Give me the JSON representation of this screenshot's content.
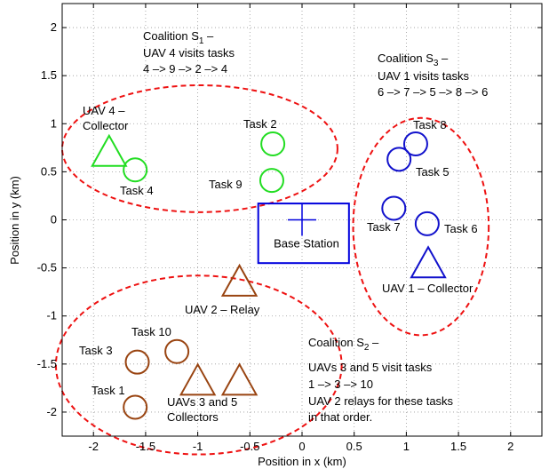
{
  "chart_data": {
    "type": "scatter",
    "xlabel": "Position in x (km)",
    "ylabel": "Position in y (km)",
    "xlim": [
      -2.3,
      2.3
    ],
    "ylim": [
      -2.25,
      2.25
    ],
    "xticks": [
      -2,
      -1.5,
      -1,
      -0.5,
      0,
      0.5,
      1,
      1.5,
      2
    ],
    "xtick_labels": [
      "-2",
      "-1.5",
      "-1",
      "-0.5",
      "0",
      "0.5",
      "1",
      "1.5",
      "2"
    ],
    "yticks": [
      -2,
      -1.5,
      -1,
      -0.5,
      0,
      0.5,
      1,
      1.5,
      2
    ],
    "ytick_labels": [
      "-2",
      "-1.5",
      "-1",
      "-0.5",
      "0",
      "0.5",
      "1",
      "1.5",
      "2"
    ],
    "grid": true,
    "colors": {
      "coalition1": "#22dd22",
      "coalition2": "#994411",
      "coalition3": "#1111cc",
      "base": "#0000dd",
      "ellipse": "#ee1111"
    },
    "tasks": [
      {
        "label": "Task 1",
        "x": -1.6,
        "y": -1.95,
        "color": "coalition2"
      },
      {
        "label": "Task 3",
        "x": -1.58,
        "y": -1.48,
        "color": "coalition2"
      },
      {
        "label": "Task 10",
        "x": -1.2,
        "y": -1.37,
        "color": "coalition2"
      },
      {
        "label": "Task 2",
        "x": -0.28,
        "y": 0.79,
        "color": "coalition1"
      },
      {
        "label": "Task 9",
        "x": -0.29,
        "y": 0.41,
        "color": "coalition1"
      },
      {
        "label": "Task 4",
        "x": -1.6,
        "y": 0.52,
        "color": "coalition1"
      },
      {
        "label": "Task 8",
        "x": 1.09,
        "y": 0.79,
        "color": "coalition3"
      },
      {
        "label": "Task 5",
        "x": 0.93,
        "y": 0.63,
        "color": "coalition3"
      },
      {
        "label": "Task 7",
        "x": 0.88,
        "y": 0.12,
        "color": "coalition3"
      },
      {
        "label": "Task 6",
        "x": 1.2,
        "y": -0.04,
        "color": "coalition3"
      }
    ],
    "uavs": [
      {
        "x": -1.85,
        "y": 0.7,
        "color": "coalition1"
      },
      {
        "x": -0.6,
        "y": -0.65,
        "color": "coalition2"
      },
      {
        "x": -1.0,
        "y": -1.68,
        "color": "coalition2"
      },
      {
        "x": -0.6,
        "y": -1.68,
        "color": "coalition2"
      },
      {
        "x": 1.21,
        "y": -0.46,
        "color": "coalition3"
      }
    ],
    "base_station": {
      "x": 0.0,
      "y": 0.0,
      "x_left": -0.42,
      "x_right": 0.45,
      "y_bottom": -0.45,
      "y_top": 0.17,
      "label": "Base Station"
    },
    "coalition_regions": [
      {
        "cx": -0.98,
        "cy": 0.74,
        "rx": 1.32,
        "ry": 0.66,
        "rot": 0
      },
      {
        "cx": -0.99,
        "cy": -1.51,
        "rx": 1.37,
        "ry": 0.93,
        "rot": 0
      },
      {
        "cx": 1.14,
        "cy": -0.07,
        "rx": 0.65,
        "ry": 1.13,
        "rot": 0
      }
    ],
    "annotations": {
      "uav4_line1": "UAV 4 –",
      "uav4_line2": "Collector",
      "task2": "Task 2",
      "task9": "Task 9",
      "task4": "Task 4",
      "task8": "Task 8",
      "task5": "Task 5",
      "task7": "Task 7",
      "task6": "Task 6",
      "uav1": "UAV 1 – Collector",
      "uav2": "UAV 2 – Relay",
      "task10": "Task 10",
      "task3": "Task 3",
      "task1": "Task 1",
      "uavs35_line1": "UAVs 3 and 5",
      "uavs35_line2": "Collectors",
      "coal1_title_pre": "Coalition S",
      "coal1_sub": "1",
      "coal1_title_post": " –",
      "coal1_line2": "UAV 4 visits tasks",
      "coal1_line3": "4 –> 9 –> 2 –> 4",
      "coal3_title_pre": "Coalition S",
      "coal3_sub": "3",
      "coal3_title_post": " –",
      "coal3_line2": "UAV 1 visits tasks",
      "coal3_line3": "6 –> 7 –> 5 –> 8 –> 6",
      "coal2_title_pre": "Coalition S",
      "coal2_sub": "2",
      "coal2_title_post": " –",
      "coal2_line2": "UAVs 3 and 5 visit tasks",
      "coal2_line3": "1 –> 3 –> 10",
      "coal2_line4": "UAV 2 relays for these tasks",
      "coal2_line5": "in that order."
    }
  }
}
